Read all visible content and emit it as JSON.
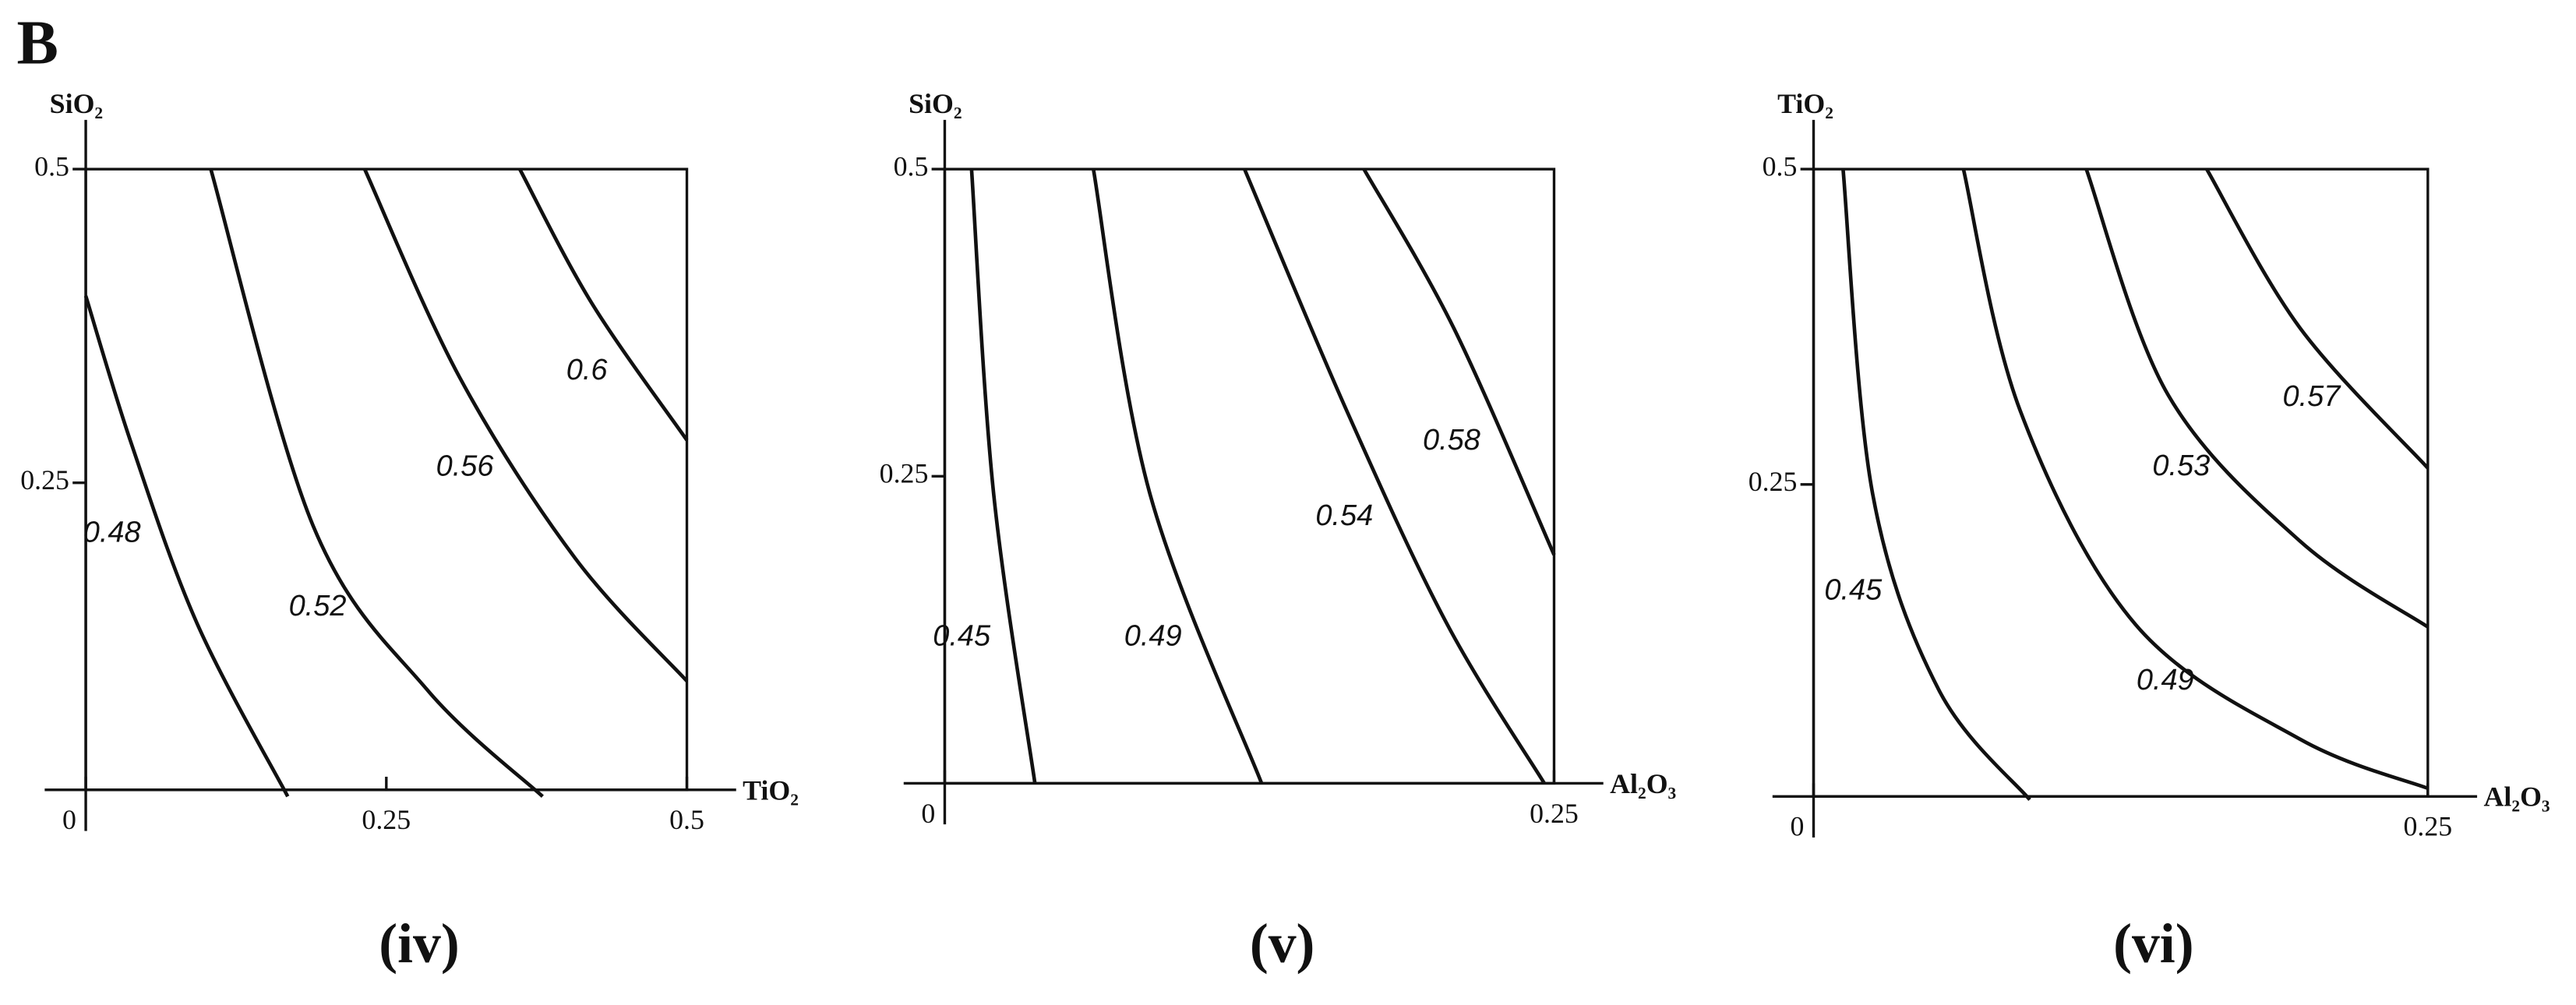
{
  "figure_label": "B",
  "chart_data": [
    {
      "type": "contour",
      "caption": "(iv)",
      "xlabel": "TiO₂",
      "ylabel": "SiO₂",
      "xlim": [
        0,
        0.5
      ],
      "ylim": [
        0,
        0.5
      ],
      "xticks": [
        0,
        0.25,
        0.5
      ],
      "yticks": [
        0.25,
        0.5
      ],
      "contours": [
        {
          "level": 0.48,
          "x": [
            0,
            0.038,
            0.093,
            0.168
          ],
          "y": [
            0.399,
            0.281,
            0.137,
            0
          ]
        },
        {
          "level": 0.52,
          "x": [
            0.104,
            0.189,
            0.284,
            0.38
          ],
          "y": [
            0.5,
            0.216,
            0.085,
            0
          ]
        },
        {
          "level": 0.56,
          "x": [
            0.232,
            0.311,
            0.407,
            0.5
          ],
          "y": [
            0.5,
            0.334,
            0.19,
            0.092
          ]
        },
        {
          "level": 0.6,
          "x": [
            0.361,
            0.421,
            0.5
          ],
          "y": [
            0.5,
            0.393,
            0.284
          ]
        }
      ]
    },
    {
      "type": "contour",
      "caption": "(v)",
      "xlabel": "Al₂O₃",
      "ylabel": "SiO₂",
      "xlim": [
        0,
        0.25
      ],
      "ylim": [
        0,
        0.5
      ],
      "xticks": [
        0,
        0.25
      ],
      "yticks": [
        0.25,
        0.5
      ],
      "contours": [
        {
          "level": 0.45,
          "x": [
            0.011,
            0.02,
            0.037
          ],
          "y": [
            0.5,
            0.237,
            0
          ]
        },
        {
          "level": 0.49,
          "x": [
            0.061,
            0.084,
            0.13
          ],
          "y": [
            0.5,
            0.237,
            0
          ]
        },
        {
          "level": 0.54,
          "x": [
            0.123,
            0.165,
            0.206,
            0.246
          ],
          "y": [
            0.5,
            0.303,
            0.13,
            0
          ]
        },
        {
          "level": 0.58,
          "x": [
            0.172,
            0.209,
            0.25
          ],
          "y": [
            0.5,
            0.37,
            0.186
          ]
        }
      ]
    },
    {
      "type": "contour",
      "caption": "(vi)",
      "xlabel": "Al₂O₃",
      "ylabel": "TiO₂",
      "xlim": [
        0,
        0.25
      ],
      "ylim": [
        0,
        0.5
      ],
      "xticks": [
        0,
        0.25
      ],
      "yticks": [
        0.25,
        0.5
      ],
      "contours": [
        {
          "level": 0.45,
          "x": [
            0.012,
            0.024,
            0.051,
            0.088
          ],
          "y": [
            0.5,
            0.243,
            0.087,
            0
          ]
        },
        {
          "level": 0.49,
          "x": [
            0.061,
            0.084,
            0.131,
            0.198,
            0.25
          ],
          "y": [
            0.5,
            0.309,
            0.139,
            0.048,
            0.009
          ]
        },
        {
          "level": 0.53,
          "x": [
            0.111,
            0.144,
            0.198,
            0.25
          ],
          "y": [
            0.5,
            0.322,
            0.205,
            0.137
          ]
        },
        {
          "level": 0.57,
          "x": [
            0.16,
            0.198,
            0.25
          ],
          "y": [
            0.5,
            0.374,
            0.263
          ]
        }
      ]
    }
  ]
}
